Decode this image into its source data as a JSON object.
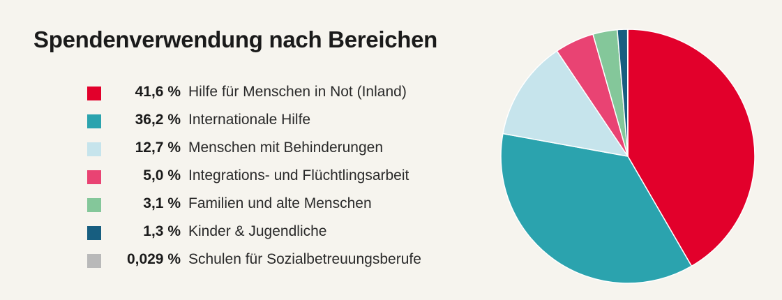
{
  "title": "Spendenverwendung nach Bereichen",
  "legend": [
    {
      "pct": "41,6 %",
      "label": "Hilfe für Menschen in Not (Inland)",
      "color": "#e2002b"
    },
    {
      "pct": "36,2 %",
      "label": "Internationale Hilfe",
      "color": "#2ba3ae"
    },
    {
      "pct": "12,7 %",
      "label": "Menschen mit Behinderungen",
      "color": "#c6e4ec"
    },
    {
      "pct": "5,0 %",
      "label": "Integrations- und Flüchtlingsarbeit",
      "color": "#e94373"
    },
    {
      "pct": "3,1 %",
      "label": "Familien und alte Menschen",
      "color": "#84c79a"
    },
    {
      "pct": "1,3 %",
      "label": "Kinder & Jugendliche",
      "color": "#175e80"
    },
    {
      "pct": "0,029 %",
      "label": "Schulen für Sozialbetreuungsberufe",
      "color": "#b9b9b9"
    }
  ],
  "chart_data": {
    "type": "pie",
    "title": "Spendenverwendung nach Bereichen",
    "categories": [
      "Hilfe für Menschen in Not (Inland)",
      "Internationale Hilfe",
      "Menschen mit Behinderungen",
      "Integrations- und Flüchtlingsarbeit",
      "Familien und alte Menschen",
      "Kinder & Jugendliche",
      "Schulen für Sozialbetreuungsberufe"
    ],
    "values": [
      41.6,
      36.2,
      12.7,
      5.0,
      3.1,
      1.3,
      0.029
    ],
    "unit": "%",
    "colors": [
      "#e2002b",
      "#2ba3ae",
      "#c6e4ec",
      "#e94373",
      "#84c79a",
      "#175e80",
      "#b9b9b9"
    ],
    "legend_position": "left"
  }
}
